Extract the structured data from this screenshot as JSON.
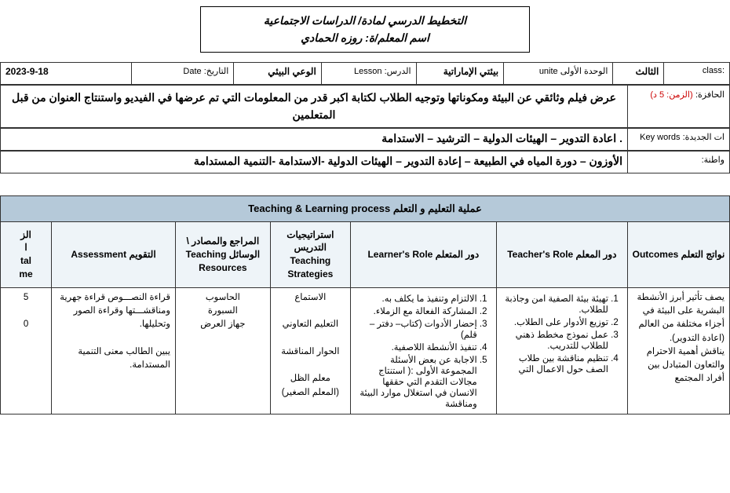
{
  "header": {
    "title_line1": "التخطيط الدرسي لمادة/ الدراسات الاجتماعية",
    "title_line2": "اسم المعلم/ة: روزه الحمادي"
  },
  "info": {
    "class_label": ":class",
    "class_value": "الثالث",
    "unit_label": "الوحدة الأولى     unite",
    "unit_value": "بيئتي الإماراتية",
    "lesson_label": "الدرس:     Lesson",
    "lesson_value": "الوعي البيئي",
    "date_label": "التاريخ:     Date",
    "date_value": "2023-9-18",
    "motivator_label": "الحافزة:",
    "motivator_time": "(الزمن: 5 د)",
    "motivator_text": "عرض فيلم وثائقي عن البيئة ومكوناتها وتوجيه الطلاب لكتابة اكبر قدر من  المعلومات التي تم عرضها في الفيديو واستنتاج العنوان من قبل المتعلمين",
    "keywords_label": "ات الجديدة: Key words",
    "keywords_text": ".  اعادة التدوير – الهيئات الدولية – الترشيد – الاستدامة",
    "citizenship_label": "واطنة:",
    "citizenship_text": "الأوزون – دورة المياه في الطبيعة – إعادة التدوير – الهيئات الدولية  -الاستدامة  -التنمية المستدامة"
  },
  "process": {
    "banner": "عملية التعليم و التعلم  Teaching & Learning process",
    "headers": {
      "outcomes": "نواتج التعلم Outcomes",
      "teacher": "دور المعلم Teacher's Role",
      "learner": "دور المتعلم Learner's Role",
      "strategies": "استراتيجيات التدريس Teaching Strategies",
      "resources": "المراجع والمصادر \\ الوسائل  Teaching Resources",
      "assessment": "التقويم Assessment",
      "time": "الز\nا\ntal\nme"
    },
    "row": {
      "outcomes": "يصف تأثير أبرز الأنشطة البشرية على البيئة في أجزاء مختلفة من العالم (اعادة التدوير).\nيناقش أهمية الاحترام والتعاون المتبادل بين أفراد المجتمع",
      "teacher_items": [
        "تهيئة بيئة الصفية امن وجاذبة للطلاب.",
        "توزيع الأدوار على الطلاب.",
        "عمل نموذج مخطط ذهني للطلاب للتدريب.",
        "تنظيم مناقشة بين طلاب الصف حول الاعمال التي"
      ],
      "learner_items": [
        "الالتزام وتنفيذ ما يكلف به.",
        "المشاركة الفعالة مع الزملاء.",
        "إحضار الأدوات (كتاب– دفتر – قلم)",
        "تنفيذ الأنشطة اللاصفية.",
        "الاجابة عن بعض الأسئلة المجموعة الأولى :( استنتاج مجالات التقدم التي حققها الانسان في استغلال موارد البيئة  ومناقشة"
      ],
      "strategies": "الاستماع\n\nالتعليم التعاوني\n\nالحوار المناقشة\n\nمعلم الظل\n(المعلم الصغير)",
      "resources": "الحاسوب\nالسبورة\nجهاز العرض",
      "assessment": "قراءة النصـــوص قراءة جهرية ومناقشـــتها وقراءة الصور وتحليلها.\n\nيبين الطالب معنى التنمية المستدامة.",
      "time": "5\n\n0"
    }
  },
  "colors": {
    "banner_bg": "#b5c9d9",
    "head_bg": "#eef4f8",
    "border": "#333333",
    "time_red": "#c00000"
  }
}
